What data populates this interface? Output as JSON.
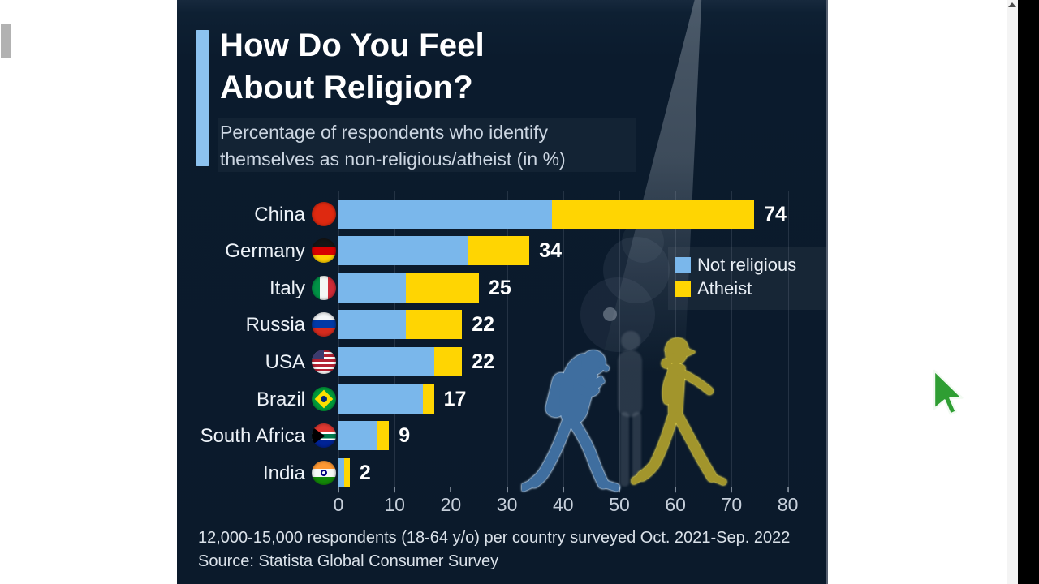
{
  "window": {
    "cursor_icon": "green-arrow-pointer",
    "scrollbar": {
      "orientation": "vertical",
      "thumb_position": "top"
    }
  },
  "infographic": {
    "title_line1": "How Do You Feel",
    "title_line2": "About Religion?",
    "subtitle_line1": "Percentage of respondents who identify",
    "subtitle_line2": "themselves as non-religious/atheist (in %)",
    "footnote": "12,000-15,000 respondents (18-64 y/o) per country surveyed Oct. 2021-Sep. 2022",
    "source": "Source: Statista Global Consumer Survey",
    "accent_color": "#8cc2ef",
    "background_color": "#0b1a2b"
  },
  "legend": {
    "items": [
      {
        "label": "Not religious",
        "color": "#7ab7eb",
        "icon": "blue-square-swatch"
      },
      {
        "label": "Atheist",
        "color": "#ffd502",
        "icon": "yellow-square-swatch"
      }
    ]
  },
  "chart_data": {
    "type": "bar",
    "orientation": "horizontal",
    "stacked": true,
    "title": "How Do You Feel About Religion?",
    "subtitle": "Percentage of respondents who identify themselves as non-religious/atheist (in %)",
    "categories": [
      "China",
      "Germany",
      "Italy",
      "Russia",
      "USA",
      "Brazil",
      "South Africa",
      "India"
    ],
    "flag_icons": [
      "flag-china-icon",
      "flag-germany-icon",
      "flag-italy-icon",
      "flag-russia-icon",
      "flag-usa-icon",
      "flag-brazil-icon",
      "flag-south-africa-icon",
      "flag-india-icon"
    ],
    "series": [
      {
        "name": "Not religious",
        "color": "#7ab7eb",
        "values": [
          38,
          23,
          12,
          12,
          17,
          15,
          7,
          1
        ]
      },
      {
        "name": "Atheist",
        "color": "#ffd502",
        "values": [
          36,
          11,
          13,
          10,
          5,
          2,
          2,
          1
        ]
      }
    ],
    "totals": [
      74,
      34,
      25,
      22,
      22,
      17,
      9,
      2
    ],
    "x_ticks": [
      0,
      10,
      20,
      30,
      40,
      50,
      60,
      70,
      80
    ],
    "xlim": [
      0,
      80
    ],
    "grid": true,
    "legend_position": "middle-right",
    "value_label_style": "total shown at end of each bar"
  }
}
